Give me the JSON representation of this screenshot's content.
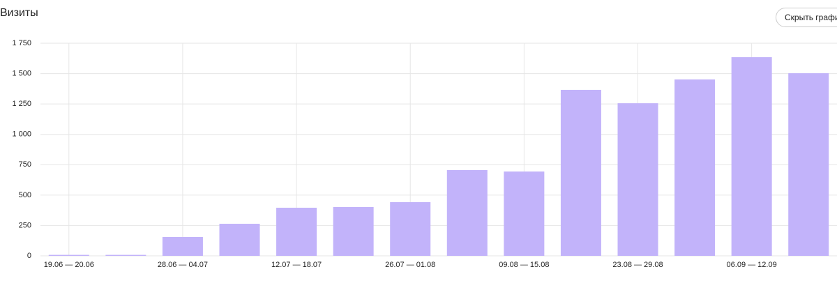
{
  "header": {
    "title": "Визиты",
    "button": "Скрыть график"
  },
  "chart_data": {
    "type": "bar",
    "categories": [
      "19.06 — 20.06",
      null,
      "28.06 — 04.07",
      null,
      "12.07 — 18.07",
      null,
      "26.07 — 01.08",
      null,
      "09.08 — 15.08",
      null,
      "23.08 — 29.08",
      null,
      "06.09 — 12.09",
      null
    ],
    "values": [
      8,
      8,
      155,
      264,
      396,
      402,
      442,
      706,
      694,
      1366,
      1256,
      1452,
      1635,
      1503
    ],
    "color": "#c2b3fa",
    "ylim": [
      0,
      1750
    ],
    "yticks": [
      0,
      250,
      500,
      750,
      {
        "value": 1000,
        "label": "1 000"
      },
      {
        "value": 1250,
        "label": "1 250"
      },
      {
        "value": 1500,
        "label": "1 500"
      },
      {
        "value": 1750,
        "label": "1 750"
      }
    ],
    "grid": true
  }
}
